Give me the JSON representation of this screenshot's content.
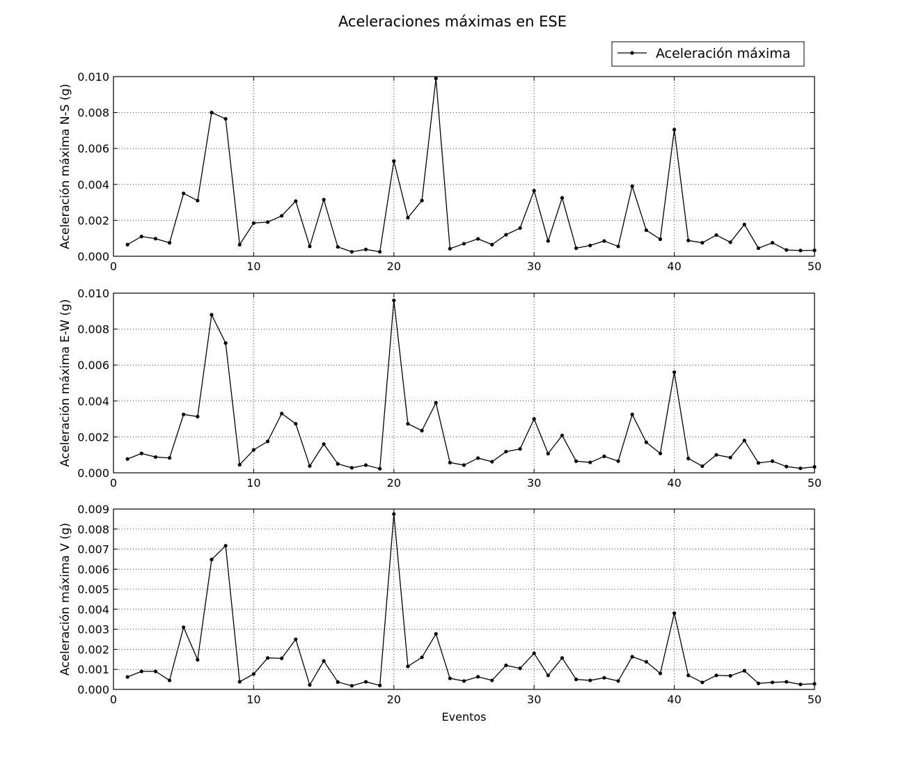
{
  "title": "Aceleraciones máximas en ESE",
  "legend": {
    "label": "Aceleración máxima",
    "placement": "top-right"
  },
  "xlabel": "Eventos",
  "colors": {
    "line": "#000000",
    "marker": "#000000"
  },
  "chart_data": [
    {
      "type": "line",
      "ylabel": "Aceleración máxima N-S (g)",
      "xlim": [
        0,
        50
      ],
      "ylim": [
        0,
        0.01
      ],
      "xticks": [
        "0",
        "10",
        "20",
        "30",
        "40",
        "50"
      ],
      "yticks": [
        "0.000",
        "0.002",
        "0.004",
        "0.006",
        "0.008",
        "0.010"
      ],
      "grid": true,
      "series": [
        {
          "name": "Aceleración máxima",
          "x": [
            1,
            2,
            3,
            4,
            5,
            6,
            7,
            8,
            9,
            10,
            11,
            12,
            13,
            14,
            15,
            16,
            17,
            18,
            19,
            20,
            21,
            22,
            23,
            24,
            25,
            26,
            27,
            28,
            29,
            30,
            31,
            32,
            33,
            34,
            35,
            36,
            37,
            38,
            39,
            40,
            41,
            42,
            43,
            44,
            45,
            46,
            47,
            48,
            49,
            50
          ],
          "values": [
            0.00065,
            0.0011,
            0.00098,
            0.00075,
            0.0035,
            0.0031,
            0.008,
            0.00765,
            0.00065,
            0.00185,
            0.0019,
            0.00225,
            0.00307,
            0.00055,
            0.00315,
            0.00052,
            0.00025,
            0.00038,
            0.00025,
            0.0053,
            0.00215,
            0.0031,
            0.0099,
            0.00042,
            0.0007,
            0.00097,
            0.00065,
            0.0012,
            0.00157,
            0.00365,
            0.00085,
            0.00325,
            0.00045,
            0.0006,
            0.00085,
            0.00055,
            0.0039,
            0.00145,
            0.00095,
            0.00705,
            0.00088,
            0.00075,
            0.00118,
            0.00078,
            0.00177,
            0.00045,
            0.00075,
            0.00035,
            0.00032,
            0.00033
          ]
        }
      ]
    },
    {
      "type": "line",
      "ylabel": "Aceleración máxima E-W (g)",
      "xlim": [
        0,
        50
      ],
      "ylim": [
        0,
        0.01
      ],
      "xticks": [
        "0",
        "10",
        "20",
        "30",
        "40",
        "50"
      ],
      "yticks": [
        "0.000",
        "0.002",
        "0.004",
        "0.006",
        "0.008",
        "0.010"
      ],
      "grid": true,
      "series": [
        {
          "name": "Aceleración máxima",
          "x": [
            1,
            2,
            3,
            4,
            5,
            6,
            7,
            8,
            9,
            10,
            11,
            12,
            13,
            14,
            15,
            16,
            17,
            18,
            19,
            20,
            21,
            22,
            23,
            24,
            25,
            26,
            27,
            28,
            29,
            30,
            31,
            32,
            33,
            34,
            35,
            36,
            37,
            38,
            39,
            40,
            41,
            42,
            43,
            44,
            45,
            46,
            47,
            48,
            49,
            50
          ],
          "values": [
            0.00077,
            0.00108,
            0.00088,
            0.00083,
            0.00325,
            0.00313,
            0.0088,
            0.00722,
            0.00045,
            0.00128,
            0.00175,
            0.0033,
            0.00273,
            0.00038,
            0.0016,
            0.0005,
            0.00028,
            0.00043,
            0.00023,
            0.0096,
            0.00273,
            0.00235,
            0.0039,
            0.00057,
            0.00043,
            0.00082,
            0.00062,
            0.00118,
            0.00133,
            0.003,
            0.00107,
            0.00208,
            0.00065,
            0.00058,
            0.00092,
            0.00065,
            0.00325,
            0.0017,
            0.00108,
            0.0056,
            0.0008,
            0.00037,
            0.001,
            0.00085,
            0.0018,
            0.00055,
            0.00065,
            0.00035,
            0.00025,
            0.00033
          ]
        }
      ]
    },
    {
      "type": "line",
      "ylabel": "Aceleración máxima V (g)",
      "xlabel": "Eventos",
      "xlim": [
        0,
        50
      ],
      "ylim": [
        0,
        0.009
      ],
      "xticks": [
        "0",
        "10",
        "20",
        "30",
        "40",
        "50"
      ],
      "yticks": [
        "0.000",
        "0.001",
        "0.002",
        "0.003",
        "0.004",
        "0.005",
        "0.006",
        "0.007",
        "0.008",
        "0.009"
      ],
      "grid": true,
      "series": [
        {
          "name": "Aceleración máxima",
          "x": [
            1,
            2,
            3,
            4,
            5,
            6,
            7,
            8,
            9,
            10,
            11,
            12,
            13,
            14,
            15,
            16,
            17,
            18,
            19,
            20,
            21,
            22,
            23,
            24,
            25,
            26,
            27,
            28,
            29,
            30,
            31,
            32,
            33,
            34,
            35,
            36,
            37,
            38,
            39,
            40,
            41,
            42,
            43,
            44,
            45,
            46,
            47,
            48,
            49,
            50
          ],
          "values": [
            0.00062,
            0.0009,
            0.0009,
            0.00045,
            0.0031,
            0.00148,
            0.00648,
            0.00717,
            0.00038,
            0.00077,
            0.00157,
            0.00155,
            0.0025,
            0.00022,
            0.00142,
            0.00037,
            0.00018,
            0.00038,
            0.0002,
            0.00875,
            0.00115,
            0.0016,
            0.00277,
            0.00055,
            0.00042,
            0.00063,
            0.00045,
            0.0012,
            0.00105,
            0.0018,
            0.0007,
            0.00157,
            0.0005,
            0.00045,
            0.00058,
            0.00042,
            0.00163,
            0.00138,
            0.0008,
            0.0038,
            0.0007,
            0.00035,
            0.0007,
            0.00068,
            0.00093,
            0.0003,
            0.00035,
            0.00038,
            0.00025,
            0.00028
          ]
        }
      ]
    }
  ]
}
